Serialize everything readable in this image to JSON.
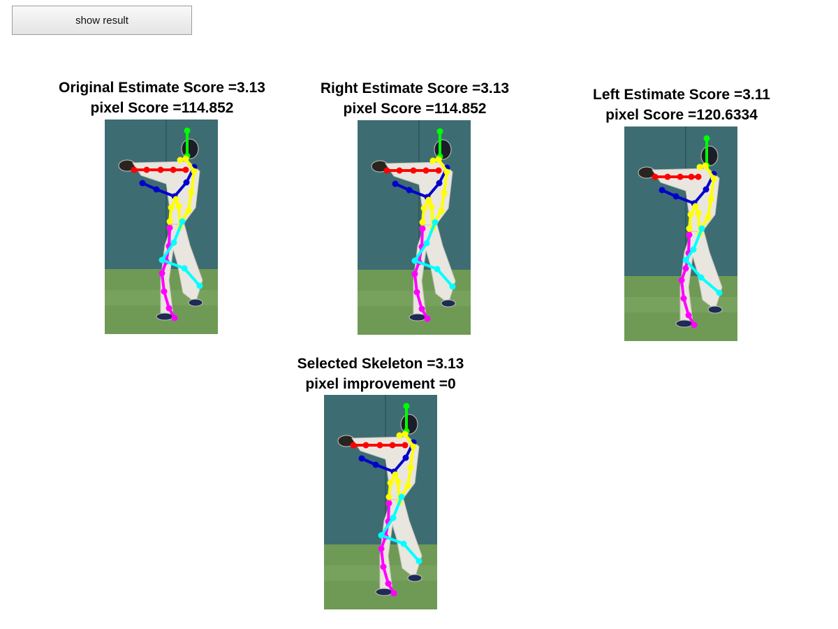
{
  "toolbar": {
    "show_result_label": "show result"
  },
  "panels": [
    {
      "id": "original",
      "line1": "Original Estimate Score =3.13",
      "line2": "pixel Score =114.852",
      "variant": "right"
    },
    {
      "id": "right",
      "line1": "Right Estimate Score =3.13",
      "line2": "pixel Score =114.852",
      "variant": "right"
    },
    {
      "id": "left",
      "line1": "Left Estimate Score =3.11",
      "line2": "pixel Score =120.6334",
      "variant": "left"
    },
    {
      "id": "selected",
      "line1": "Selected Skeleton =3.13",
      "line2": "pixel improvement =0",
      "variant": "right"
    }
  ],
  "colors": {
    "head": "#00ff00",
    "right_arm": "#ff0000",
    "left_arm": "#0000cc",
    "torso": "#ffff00",
    "right_leg": "#ff00ff",
    "left_leg": "#00ffff",
    "wall": "#3d6d72",
    "grass": "#6f9a55"
  },
  "icons": {
    "pose_photo": "baseball-player-photo-icon"
  }
}
